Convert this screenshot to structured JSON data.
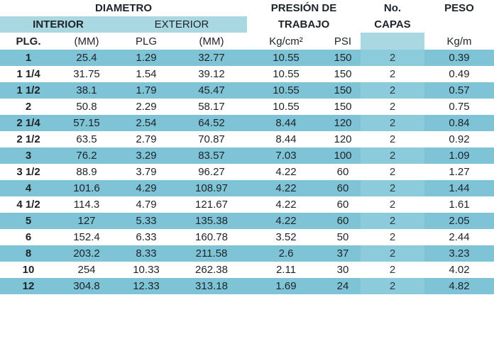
{
  "header": {
    "diametro": "DIAMETRO",
    "interior": "INTERIOR",
    "exterior": "EXTERIOR",
    "presion_line1": "PRESIÓN DE",
    "presion_line2": "TRABAJO",
    "capas_line1": "No.",
    "capas_line2": "CAPAS",
    "peso": "PESO",
    "units": [
      "PLG.",
      "(MM)",
      "PLG",
      "(MM)",
      "Kg/cm²",
      "PSI",
      "",
      "Kg/m"
    ]
  },
  "rows": [
    [
      "1",
      "25.4",
      "1.29",
      "32.77",
      "10.55",
      "150",
      "2",
      "0.39"
    ],
    [
      "1 1/4",
      "31.75",
      "1.54",
      "39.12",
      "10.55",
      "150",
      "2",
      "0.49"
    ],
    [
      "1 1/2",
      "38.1",
      "1.79",
      "45.47",
      "10.55",
      "150",
      "2",
      "0.57"
    ],
    [
      "2",
      "50.8",
      "2.29",
      "58.17",
      "10.55",
      "150",
      "2",
      "0.75"
    ],
    [
      "2 1/4",
      "57.15",
      "2.54",
      "64.52",
      "8.44",
      "120",
      "2",
      "0.84"
    ],
    [
      "2 1/2",
      "63.5",
      "2.79",
      "70.87",
      "8.44",
      "120",
      "2",
      "0.92"
    ],
    [
      "3",
      "76.2",
      "3.29",
      "83.57",
      "7.03",
      "100",
      "2",
      "1.09"
    ],
    [
      "3 1/2",
      "88.9",
      "3.79",
      "96.27",
      "4.22",
      "60",
      "2",
      "1.27"
    ],
    [
      "4",
      "101.6",
      "4.29",
      "108.97",
      "4.22",
      "60",
      "2",
      "1.44"
    ],
    [
      "4 1/2",
      "114.3",
      "4.79",
      "121.67",
      "4.22",
      "60",
      "2",
      "1.61"
    ],
    [
      "5",
      "127",
      "5.33",
      "135.38",
      "4.22",
      "60",
      "2",
      "2.05"
    ],
    [
      "6",
      "152.4",
      "6.33",
      "160.78",
      "3.52",
      "50",
      "2",
      "2.44"
    ],
    [
      "8",
      "203.2",
      "8.33",
      "211.58",
      "2.6",
      "37",
      "2",
      "3.23"
    ],
    [
      "10",
      "254",
      "10.33",
      "262.38",
      "2.11",
      "30",
      "2",
      "4.02"
    ],
    [
      "12",
      "304.8",
      "12.33",
      "313.18",
      "1.69",
      "24",
      "2",
      "4.82"
    ]
  ]
}
